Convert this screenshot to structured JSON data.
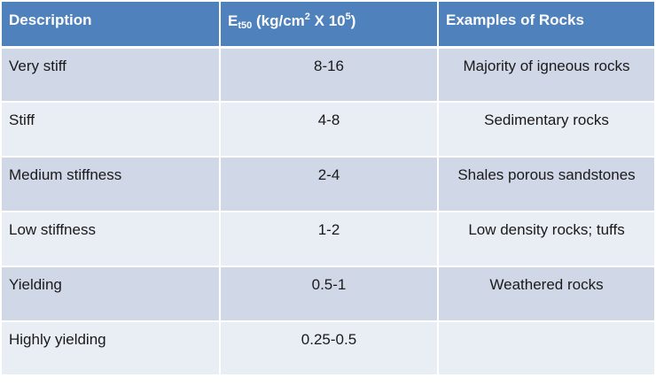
{
  "table": {
    "headers": {
      "description": "Description",
      "modulus_main": "E",
      "modulus_sub": "t50",
      "modulus_unit_a": " (kg/cm",
      "modulus_unit_sup1": "2",
      "modulus_unit_b": " X 10",
      "modulus_unit_sup2": "5",
      "modulus_unit_c": ")",
      "examples": "Examples of Rocks"
    },
    "rows": [
      {
        "description": "Very stiff",
        "value": "8-16",
        "example": "Majority of igneous rocks"
      },
      {
        "description": "Stiff",
        "value": "4-8",
        "example": "Sedimentary rocks"
      },
      {
        "description": "Medium stiffness",
        "value": "2-4",
        "example": "Shales porous sandstones"
      },
      {
        "description": "Low stiffness",
        "value": "1-2",
        "example": "Low density rocks; tuffs"
      },
      {
        "description": "Yielding",
        "value": "0.5-1",
        "example": "Weathered rocks"
      },
      {
        "description": "Highly yielding",
        "value": "0.25-0.5",
        "example": ""
      }
    ]
  },
  "colors": {
    "header_bg": "#4f81bd",
    "row_odd_bg": "#d0d8e8",
    "row_even_bg": "#e9edf4"
  }
}
